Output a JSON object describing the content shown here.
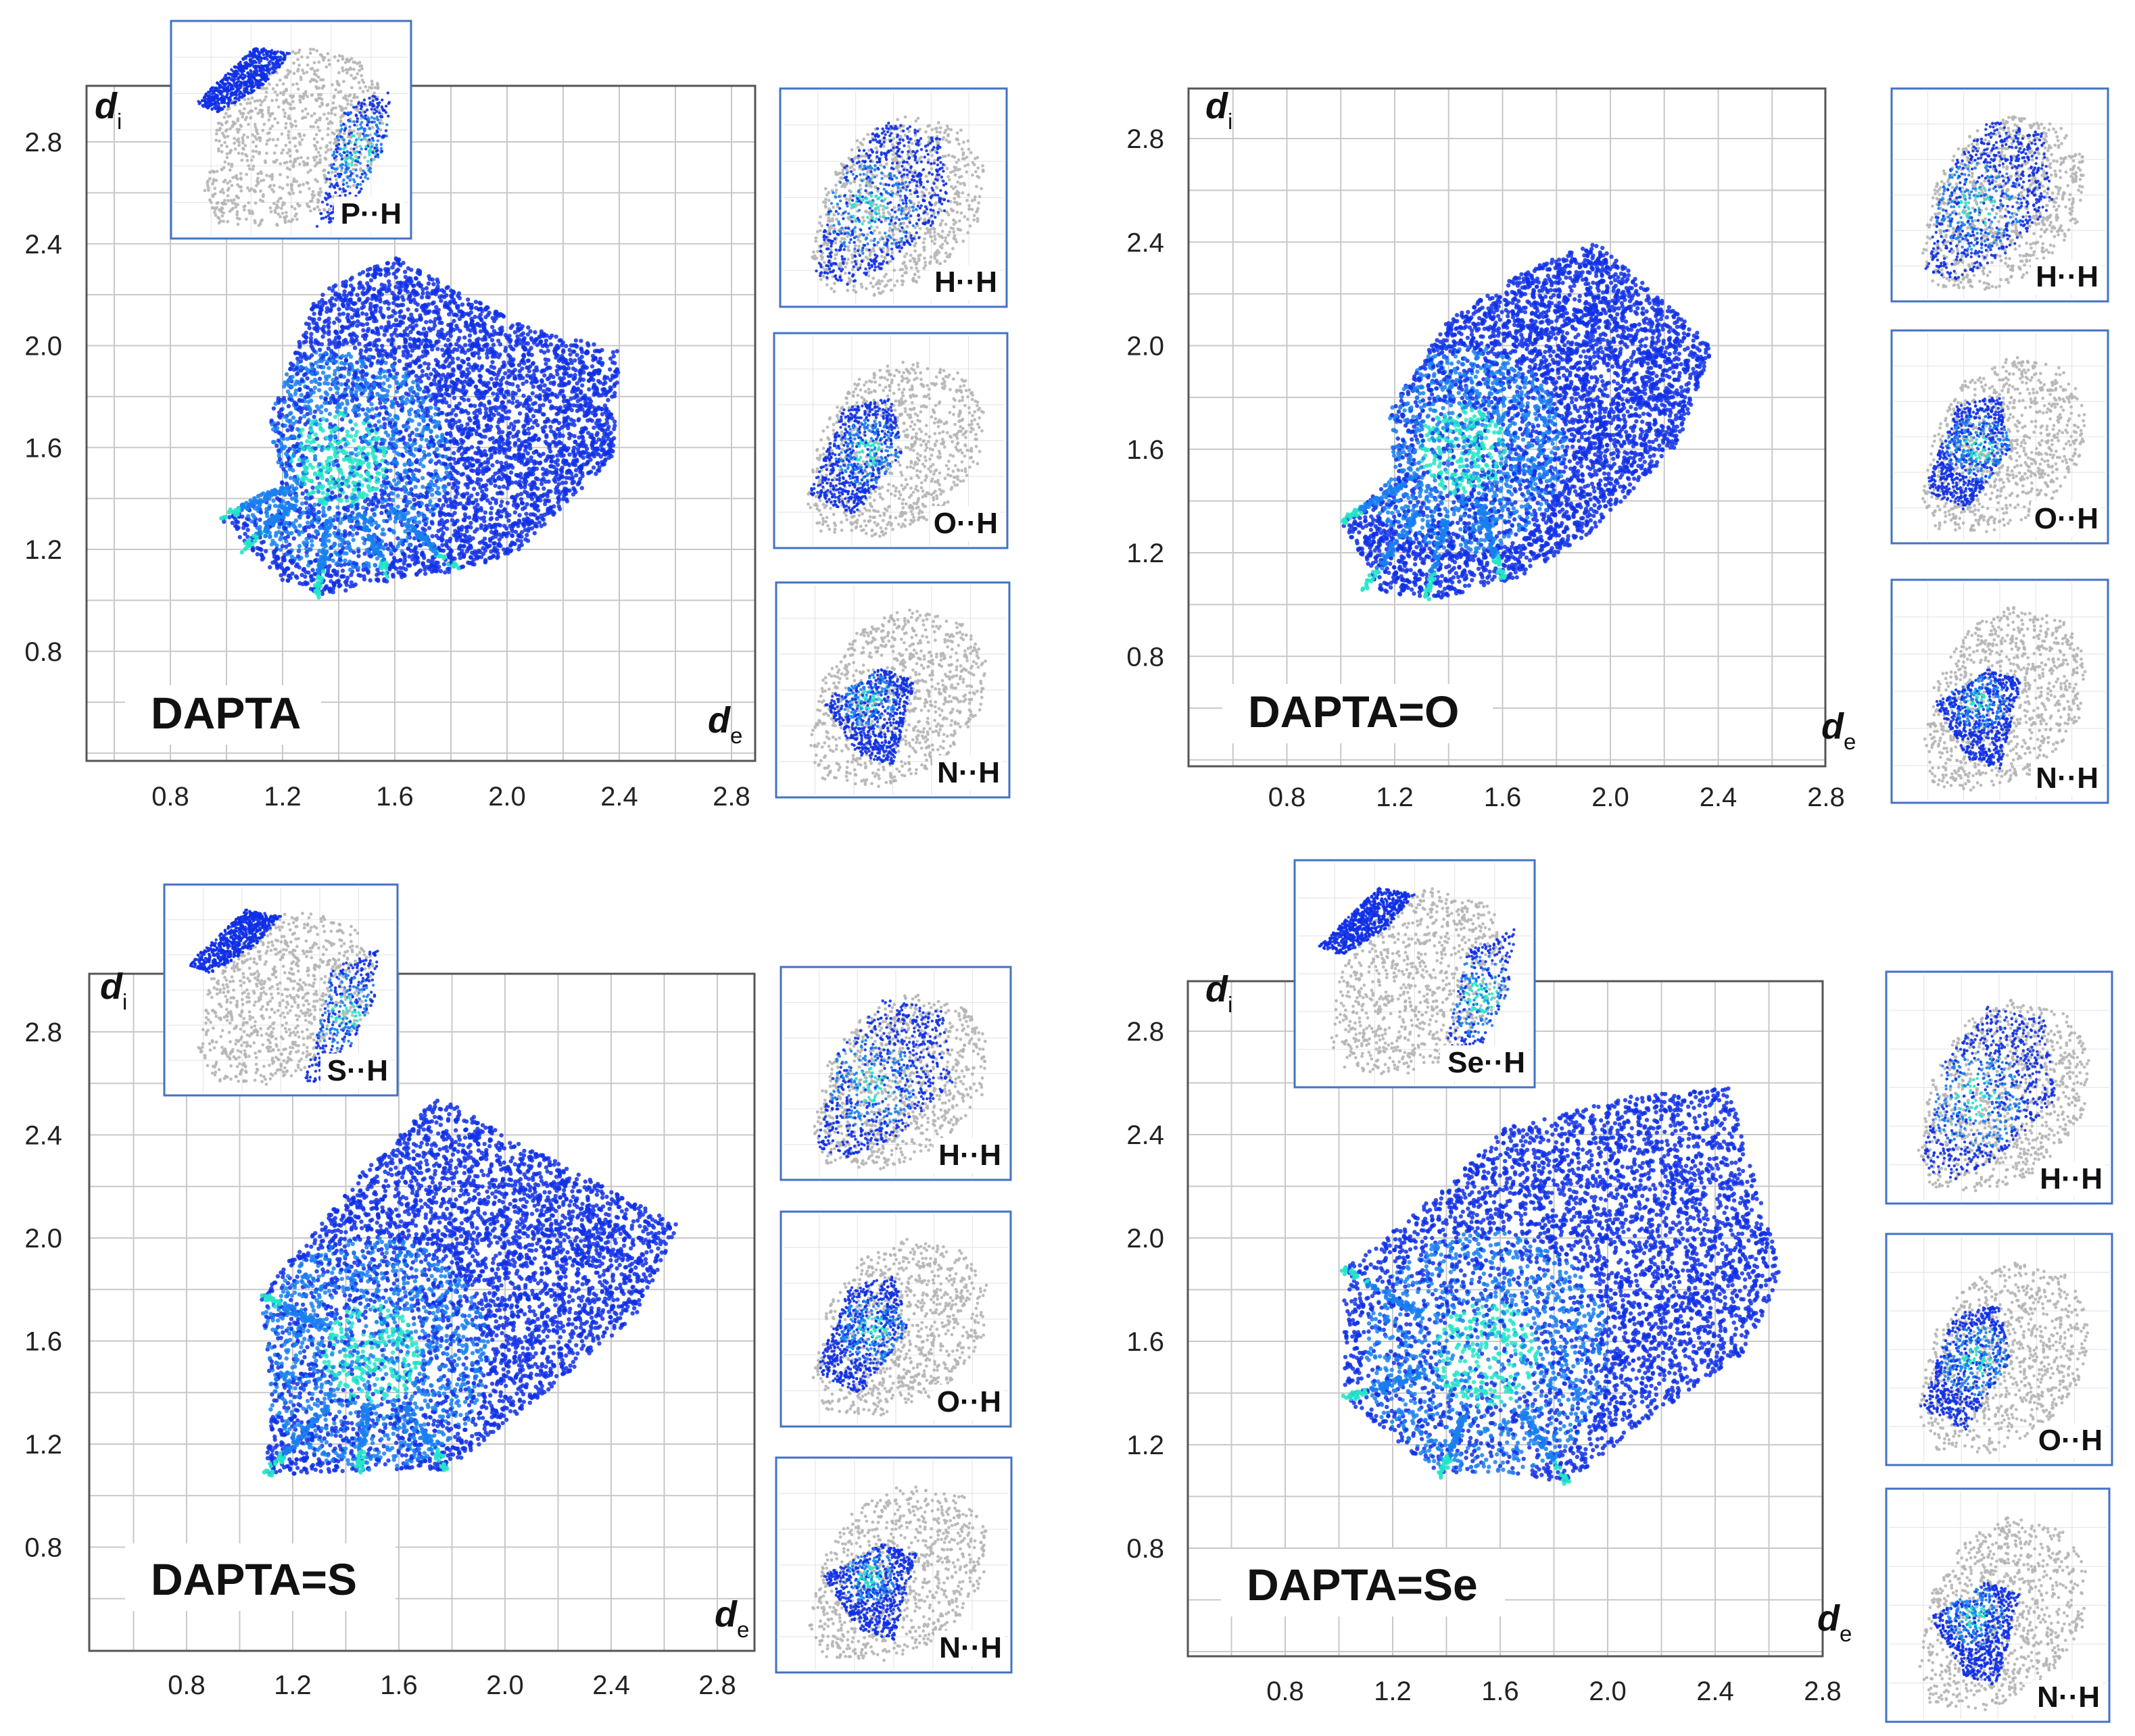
{
  "figure": {
    "axis_labels": {
      "xlabel": "d",
      "xlabel_sub": "e",
      "ylabel": "d",
      "ylabel_sub": "i"
    },
    "colors": {
      "frame": "#555555",
      "grid": "#c8c8c8",
      "inset_border": "#4472c4",
      "scatter_blue": "#1030e6",
      "scatter_mid": "#1a80f0",
      "scatter_cyan": "#22e6c8",
      "scatter_gray": "#b5b5b5",
      "label_bg": "#ffffff"
    }
  },
  "chart_data": [
    {
      "id": "dapta",
      "type": "scatter",
      "title": "DAPTA",
      "xlabel": "de",
      "ylabel": "di",
      "xlim": [
        0.4,
        2.9
      ],
      "ylim": [
        0.4,
        3.0
      ],
      "x_ticks": [
        "0.8",
        "1.2",
        "1.6",
        "2.0",
        "2.4",
        "2.8"
      ],
      "y_ticks": [
        "0.8",
        "1.2",
        "1.6",
        "2.0",
        "2.4",
        "2.8"
      ],
      "region_outline_de_di": [
        [
          0.98,
          1.32
        ],
        [
          1.2,
          1.45
        ],
        [
          1.15,
          1.7
        ],
        [
          1.32,
          2.2
        ],
        [
          1.6,
          2.35
        ],
        [
          2.05,
          2.08
        ],
        [
          2.4,
          1.98
        ],
        [
          2.38,
          1.56
        ],
        [
          2.05,
          1.2
        ],
        [
          1.85,
          1.12
        ],
        [
          1.6,
          1.08
        ],
        [
          1.35,
          1.02
        ],
        [
          1.2,
          1.08
        ]
      ],
      "spikes_de_di": [
        [
          0.98,
          1.32
        ],
        [
          1.06,
          1.2
        ],
        [
          1.32,
          1.02
        ],
        [
          1.58,
          1.08
        ],
        [
          1.82,
          1.12
        ]
      ],
      "density_peak_de_di": [
        1.4,
        1.55
      ],
      "insets": [
        {
          "label": "P··H",
          "position": "top"
        },
        {
          "label": "H··H",
          "position": "side-1"
        },
        {
          "label": "O··H",
          "position": "side-2"
        },
        {
          "label": "N··H",
          "position": "side-3"
        }
      ]
    },
    {
      "id": "dapta-o",
      "type": "scatter",
      "title": "DAPTA=O",
      "xlabel": "de",
      "ylabel": "di",
      "xlim": [
        0.4,
        2.9
      ],
      "ylim": [
        0.4,
        3.0
      ],
      "x_ticks": [
        "0.8",
        "1.2",
        "1.6",
        "2.0",
        "2.4",
        "2.8"
      ],
      "y_ticks": [
        "0.8",
        "1.2",
        "1.6",
        "2.0",
        "2.4",
        "2.8"
      ],
      "region_outline_de_di": [
        [
          1.0,
          1.32
        ],
        [
          1.2,
          1.5
        ],
        [
          1.18,
          1.75
        ],
        [
          1.4,
          2.1
        ],
        [
          1.7,
          2.3
        ],
        [
          1.95,
          2.4
        ],
        [
          2.38,
          2.0
        ],
        [
          2.25,
          1.62
        ],
        [
          1.9,
          1.25
        ],
        [
          1.65,
          1.1
        ],
        [
          1.35,
          1.02
        ],
        [
          1.15,
          1.05
        ]
      ],
      "spikes_de_di": [
        [
          1.0,
          1.32
        ],
        [
          1.08,
          1.05
        ],
        [
          1.32,
          1.02
        ],
        [
          1.6,
          1.1
        ]
      ],
      "density_peak_de_di": [
        1.45,
        1.6
      ],
      "insets": [
        {
          "label": "H··H",
          "position": "side-1"
        },
        {
          "label": "O··H",
          "position": "side-2"
        },
        {
          "label": "N··H",
          "position": "side-3"
        }
      ]
    },
    {
      "id": "dapta-s",
      "type": "scatter",
      "title": "DAPTA=S",
      "xlabel": "de",
      "ylabel": "di",
      "xlim": [
        0.4,
        2.9
      ],
      "ylim": [
        0.4,
        3.0
      ],
      "x_ticks": [
        "0.8",
        "1.2",
        "1.6",
        "2.0",
        "2.4",
        "2.8"
      ],
      "y_ticks": [
        "0.8",
        "1.2",
        "1.6",
        "2.0",
        "2.4",
        "2.8"
      ],
      "region_outline_de_di": [
        [
          1.08,
          1.78
        ],
        [
          1.3,
          2.05
        ],
        [
          1.5,
          2.3
        ],
        [
          1.75,
          2.55
        ],
        [
          2.0,
          2.4
        ],
        [
          2.65,
          2.05
        ],
        [
          2.5,
          1.7
        ],
        [
          2.15,
          1.4
        ],
        [
          1.78,
          1.1
        ],
        [
          1.5,
          1.1
        ],
        [
          1.1,
          1.08
        ],
        [
          1.12,
          1.4
        ]
      ],
      "spikes_de_di": [
        [
          1.08,
          1.78
        ],
        [
          1.1,
          1.08
        ],
        [
          1.45,
          1.1
        ],
        [
          1.78,
          1.1
        ]
      ],
      "density_peak_de_di": [
        1.5,
        1.55
      ],
      "insets": [
        {
          "label": "S··H",
          "position": "top"
        },
        {
          "label": "H··H",
          "position": "side-1"
        },
        {
          "label": "O··H",
          "position": "side-2"
        },
        {
          "label": "N··H",
          "position": "side-3"
        }
      ]
    },
    {
      "id": "dapta-se",
      "type": "scatter",
      "title": "DAPTA=Se",
      "xlabel": "de",
      "ylabel": "di",
      "xlim": [
        0.4,
        2.9
      ],
      "ylim": [
        0.4,
        3.0
      ],
      "x_ticks": [
        "0.8",
        "1.2",
        "1.6",
        "2.0",
        "2.4",
        "2.8"
      ],
      "y_ticks": [
        "0.8",
        "1.2",
        "1.6",
        "2.0",
        "2.4",
        "2.8"
      ],
      "region_outline_de_di": [
        [
          1.02,
          1.88
        ],
        [
          1.4,
          2.2
        ],
        [
          1.6,
          2.42
        ],
        [
          2.1,
          2.55
        ],
        [
          2.45,
          2.58
        ],
        [
          2.65,
          1.85
        ],
        [
          2.5,
          1.55
        ],
        [
          2.15,
          1.3
        ],
        [
          1.85,
          1.05
        ],
        [
          1.6,
          1.1
        ],
        [
          1.38,
          1.08
        ],
        [
          1.02,
          1.38
        ]
      ],
      "spikes_de_di": [
        [
          1.02,
          1.88
        ],
        [
          1.02,
          1.38
        ],
        [
          1.38,
          1.08
        ],
        [
          1.85,
          1.05
        ]
      ],
      "density_peak_de_di": [
        1.55,
        1.55
      ],
      "insets": [
        {
          "label": "Se··H",
          "position": "top"
        },
        {
          "label": "H··H",
          "position": "side-1"
        },
        {
          "label": "O··H",
          "position": "side-2"
        },
        {
          "label": "N··H",
          "position": "side-3"
        }
      ]
    }
  ]
}
